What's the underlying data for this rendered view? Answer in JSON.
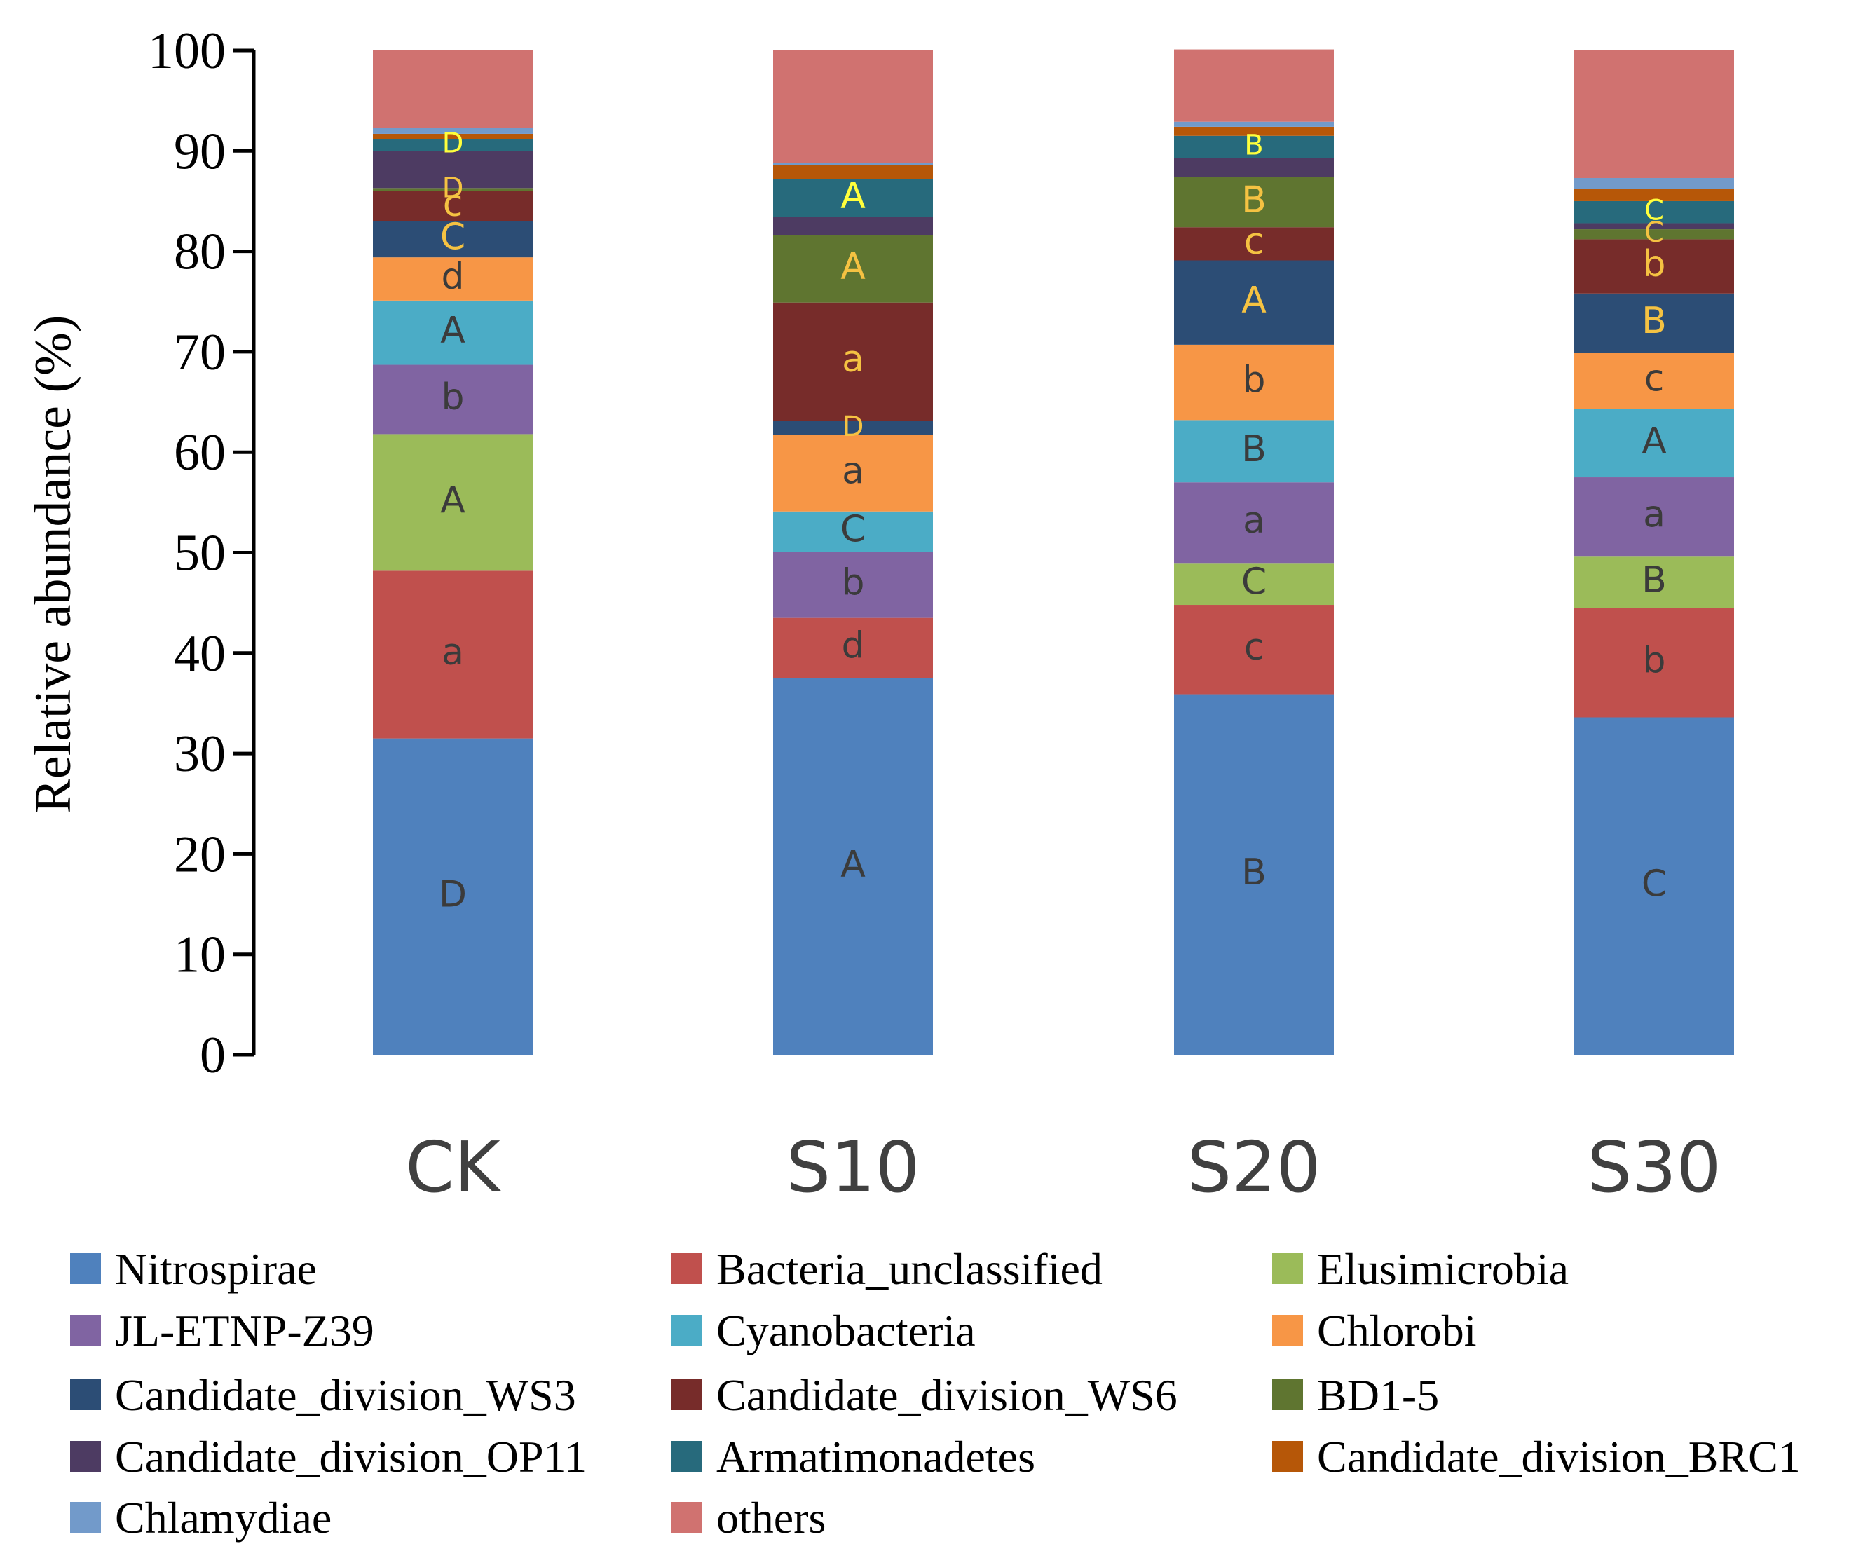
{
  "chart_data": {
    "type": "stacked-bar",
    "title": "",
    "xlabel": "",
    "ylabel": "Relative abundance (%)",
    "ylim": [
      0,
      100
    ],
    "yticks": [
      0,
      10,
      20,
      30,
      40,
      50,
      60,
      70,
      80,
      90,
      100
    ],
    "categories": [
      "CK",
      "S10",
      "S20",
      "S30"
    ],
    "series": [
      {
        "name": "Nitrospirae",
        "color": "#4f81bd",
        "values": [
          31.5,
          37.5,
          35.9,
          33.6
        ],
        "letters": [
          "D",
          "A",
          "B",
          "C"
        ],
        "letter_color": "#3b3b3b"
      },
      {
        "name": "Bacteria_unclassified",
        "color": "#c0504d",
        "values": [
          16.7,
          6.0,
          8.9,
          10.9
        ],
        "letters": [
          "a",
          "d",
          "c",
          "b"
        ],
        "letter_color": "#3b3b3b"
      },
      {
        "name": "Elusimicrobia",
        "color": "#9bbb59",
        "values": [
          13.6,
          0,
          4.1,
          5.1
        ],
        "letters": [
          "A",
          "",
          "C",
          "B"
        ],
        "letter_color": "#3b3b3b"
      },
      {
        "name": "JL-ETNP-Z39",
        "color": "#8064a2",
        "values": [
          6.9,
          6.6,
          8.1,
          7.9
        ],
        "letters": [
          "b",
          "b",
          "a",
          "a"
        ],
        "letter_color": "#3b3b3b"
      },
      {
        "name": "Cyanobacteria",
        "color": "#4bacc6",
        "values": [
          6.4,
          4.0,
          6.2,
          6.8
        ],
        "letters": [
          "A",
          "C",
          "B",
          "A"
        ],
        "letter_color": "#3b3b3b"
      },
      {
        "name": "Chlorobi",
        "color": "#f79646",
        "values": [
          4.3,
          7.6,
          7.5,
          5.6
        ],
        "letters": [
          "d",
          "a",
          "b",
          "c"
        ],
        "letter_color": "#3b3b3b"
      },
      {
        "name": "Candidate_division_WS3",
        "color": "#2c4d75",
        "values": [
          3.6,
          1.4,
          8.4,
          5.9
        ],
        "letters": [
          "C",
          "D",
          "A",
          "B"
        ],
        "letter_color": "#f5c242"
      },
      {
        "name": "Candidate_division_WS6",
        "color": "#772c2a",
        "values": [
          3.0,
          11.8,
          3.3,
          5.4
        ],
        "letters": [
          "c",
          "a",
          "c",
          "b"
        ],
        "letter_color": "#f5c242"
      },
      {
        "name": "BD1-5",
        "color": "#5f7530",
        "values": [
          0.3,
          6.7,
          5.0,
          1.0
        ],
        "letters": [
          "D",
          "A",
          "B",
          "C"
        ],
        "letter_color": "#f5c242"
      },
      {
        "name": "Candidate_division_OP11",
        "color": "#4d3b62",
        "values": [
          3.7,
          1.8,
          1.9,
          0.6
        ],
        "letters": [
          "",
          "",
          "",
          ""
        ],
        "letter_color": "#f5c242"
      },
      {
        "name": "Armatimonadetes",
        "color": "#276a7c",
        "values": [
          1.2,
          3.8,
          2.2,
          2.2
        ],
        "letters": [
          "D",
          "A",
          "B",
          "C"
        ],
        "letter_color": "#ffff3c"
      },
      {
        "name": "Candidate_division_BRC1",
        "color": "#b65708",
        "values": [
          0.5,
          1.4,
          0.9,
          1.2
        ],
        "letters": [
          "",
          "",
          "",
          ""
        ],
        "letter_color": "#f5c242"
      },
      {
        "name": "Chlamydiae",
        "color": "#729aca",
        "values": [
          0.6,
          0.2,
          0.5,
          1.1
        ],
        "letters": [
          "",
          "",
          "",
          ""
        ],
        "letter_color": "#f5c242"
      },
      {
        "name": "others",
        "color": "#d07270",
        "values": [
          7.7,
          11.2,
          7.2,
          12.7
        ],
        "letters": [
          "",
          "",
          "",
          ""
        ],
        "letter_color": "#3b3b3b"
      }
    ]
  }
}
